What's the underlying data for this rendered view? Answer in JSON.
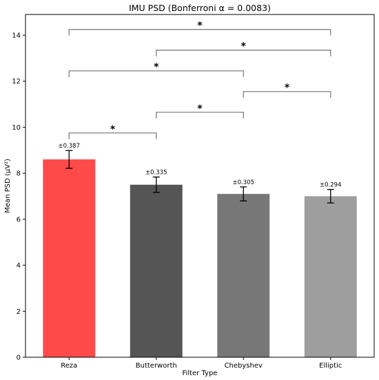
{
  "chart_data": {
    "type": "bar",
    "title": "IMU PSD  (Bonferroni α = 0.0083)",
    "xlabel": "Filter Type",
    "ylabel": "Mean PSD (μV²)",
    "ylim": [
      0,
      14.9
    ],
    "yticks": [
      "0",
      "2",
      "4",
      "6",
      "8",
      "10",
      "12",
      "14"
    ],
    "categories": [
      "Reza",
      "Butterworth",
      "Chebyshev",
      "Elliptic"
    ],
    "values": [
      8.6,
      7.5,
      7.1,
      7.0
    ],
    "errors": [
      0.387,
      0.335,
      0.305,
      0.294
    ],
    "error_labels": [
      "±0.387",
      "±0.335",
      "±0.305",
      "±0.294"
    ],
    "colors": [
      "#ff4a4a",
      "#555555",
      "#777777",
      "#9e9e9e"
    ],
    "significance": [
      {
        "from": 0,
        "to": 1,
        "y": 9.75,
        "label": "*"
      },
      {
        "from": 1,
        "to": 2,
        "y": 10.65,
        "label": "*"
      },
      {
        "from": 2,
        "to": 3,
        "y": 11.55,
        "label": "*"
      },
      {
        "from": 0,
        "to": 2,
        "y": 12.45,
        "label": "*"
      },
      {
        "from": 1,
        "to": 3,
        "y": 13.35,
        "label": "*"
      },
      {
        "from": 0,
        "to": 3,
        "y": 14.25,
        "label": "*"
      }
    ],
    "grid": false,
    "legend": "none"
  }
}
